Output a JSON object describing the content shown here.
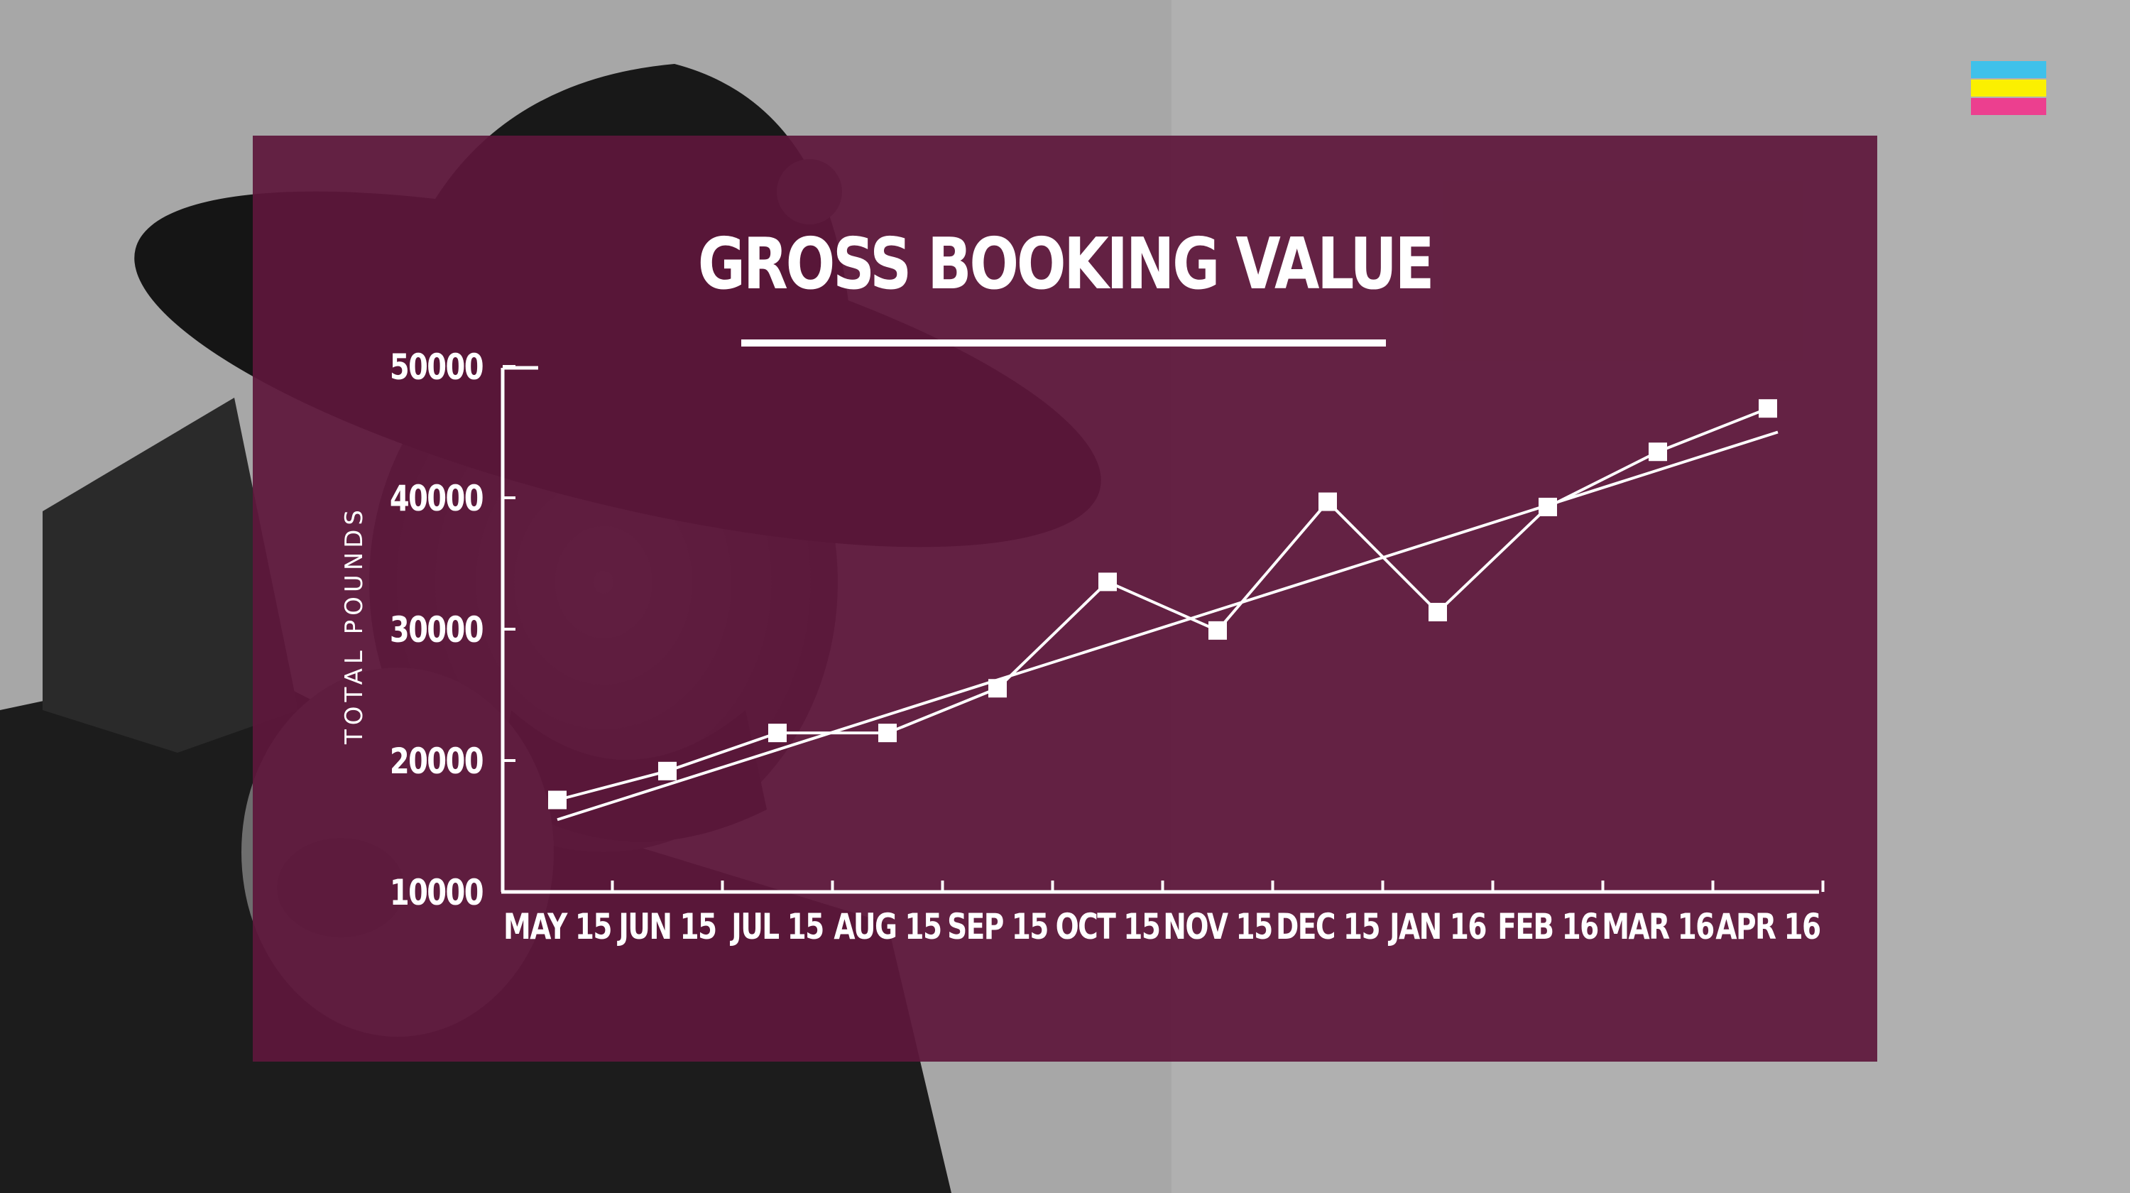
{
  "colors": {
    "panel": "#5e173b",
    "line": "#ffffff",
    "logo_stripes": [
      "#3fc1ea",
      "#fbf000",
      "#ec3f8f"
    ]
  },
  "logo": {
    "icon": "three-stripe-flag-icon"
  },
  "chart_data": {
    "type": "line",
    "title": "GROSS BOOKING VALUE",
    "ylabel": "TOTAL POUNDS",
    "xlabel": "",
    "categories": [
      "MAY 15",
      "JUN 15",
      "JUL 15",
      "AUG 15",
      "SEP 15",
      "OCT 15",
      "NOV 15",
      "DEC 15",
      "JAN 16",
      "FEB 16",
      "MAR 16",
      "APR 16"
    ],
    "yticks": [
      10000,
      20000,
      30000,
      40000,
      50000
    ],
    "ylim": [
      10000,
      50000
    ],
    "grid": false,
    "legend": "none",
    "series": [
      {
        "values": [
          17000,
          19200,
          22100,
          22100,
          25500,
          33600,
          29900,
          39700,
          31300,
          39300,
          43500,
          46800
        ],
        "marker": "square"
      }
    ],
    "trendline": {
      "start": 15500,
      "end": 45000
    }
  }
}
